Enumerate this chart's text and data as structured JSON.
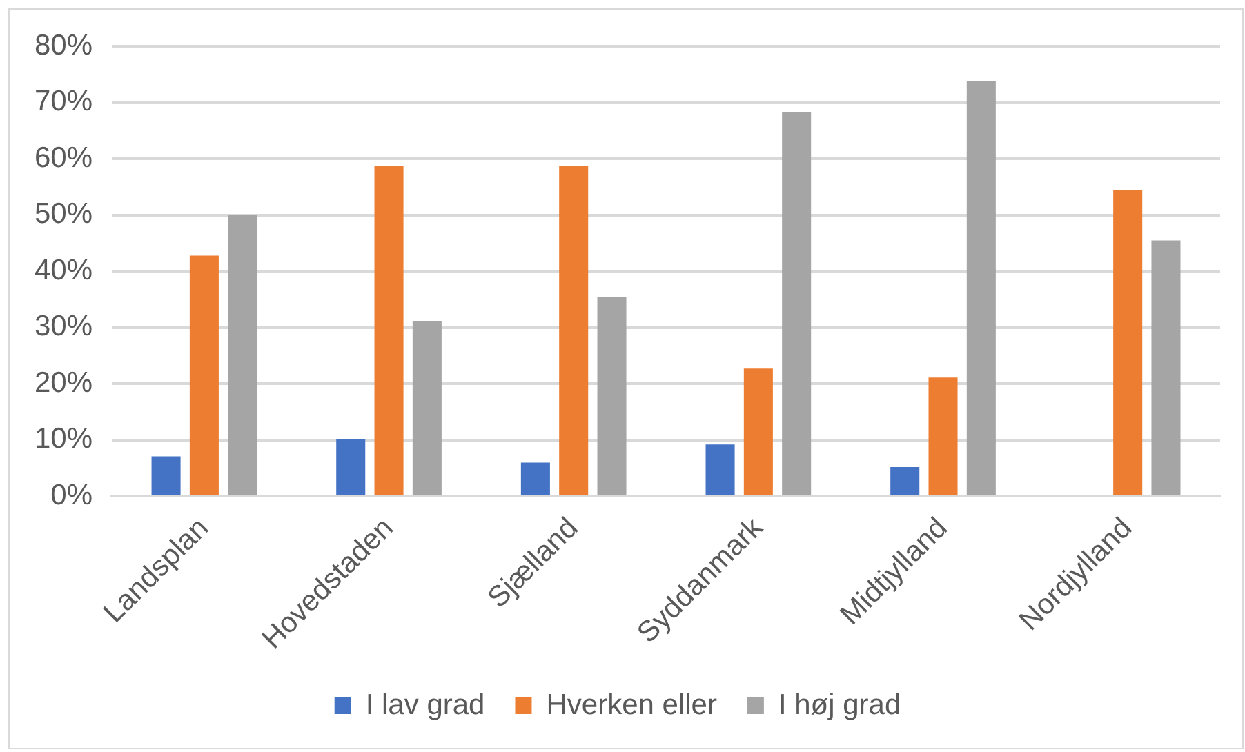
{
  "chart_data": {
    "type": "bar",
    "categories": [
      "Landsplan",
      "Hovedstaden",
      "Sjælland",
      "Syddanmark",
      "Midtjylland",
      "Nordjylland"
    ],
    "series": [
      {
        "name": "I lav grad",
        "color": "#4472c4",
        "values": [
          7.1,
          10.2,
          6.0,
          9.2,
          5.2,
          0
        ]
      },
      {
        "name": "Hverken eller",
        "color": "#ed7d31",
        "values": [
          42.8,
          58.7,
          58.7,
          22.7,
          21.1,
          54.5
        ]
      },
      {
        "name": "I høj grad",
        "color": "#a5a5a5",
        "values": [
          50.0,
          31.2,
          35.4,
          68.3,
          73.8,
          45.5
        ]
      }
    ],
    "ylim": [
      0,
      80
    ],
    "yticks": [
      {
        "value": 0,
        "label": "0%"
      },
      {
        "value": 10,
        "label": "10%"
      },
      {
        "value": 20,
        "label": "20%"
      },
      {
        "value": 30,
        "label": "30%"
      },
      {
        "value": 40,
        "label": "40%"
      },
      {
        "value": 50,
        "label": "50%"
      },
      {
        "value": 60,
        "label": "60%"
      },
      {
        "value": 70,
        "label": "70%"
      },
      {
        "value": 80,
        "label": "80%"
      }
    ],
    "grid": "y",
    "legend": "bottom"
  }
}
